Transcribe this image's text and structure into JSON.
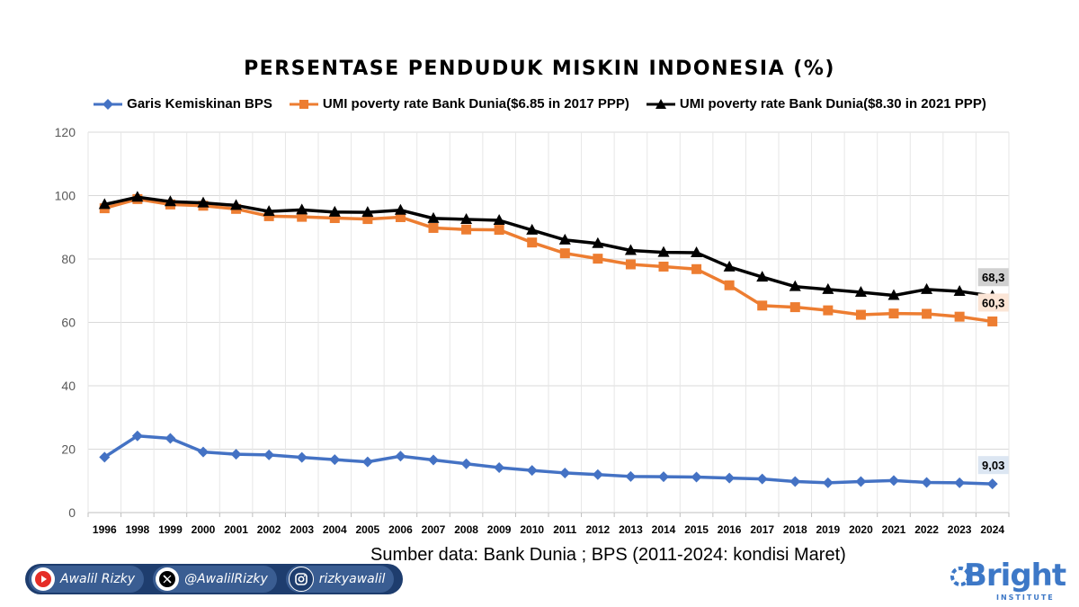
{
  "chart_data": {
    "type": "line",
    "title": "PERSENTASE PENDUDUK MISKIN INDONESIA (%)",
    "categories": [
      "1996",
      "1998",
      "1999",
      "2000",
      "2001",
      "2002",
      "2003",
      "2004",
      "2005",
      "2006",
      "2007",
      "2008",
      "2009",
      "2010",
      "2011",
      "2012",
      "2013",
      "2014",
      "2015",
      "2016",
      "2017",
      "2018",
      "2019",
      "2020",
      "2021",
      "2022",
      "2023",
      "2024"
    ],
    "ylim": [
      0,
      120
    ],
    "yticks": [
      "0",
      "20",
      "40",
      "60",
      "80",
      "100",
      "120"
    ],
    "grid": "horizontal",
    "legend_position": "top",
    "series": [
      {
        "name": "Garis Kemiskinan BPS",
        "color": "#4472c4",
        "marker": "diamond",
        "values": [
          17.5,
          24.2,
          23.4,
          19.1,
          18.4,
          18.2,
          17.4,
          16.7,
          16.0,
          17.8,
          16.6,
          15.4,
          14.2,
          13.3,
          12.5,
          12.0,
          11.4,
          11.3,
          11.2,
          10.9,
          10.6,
          9.8,
          9.4,
          9.8,
          10.1,
          9.5,
          9.4,
          9.03
        ],
        "end_label": "9,03",
        "end_label_bg": "#dce6f2"
      },
      {
        "name": "UMI poverty rate Bank Dunia($6.85 in 2017 PPP)",
        "color": "#ed7d31",
        "marker": "square",
        "values": [
          96.0,
          98.9,
          97.2,
          96.8,
          95.8,
          93.5,
          93.3,
          92.9,
          92.6,
          93.2,
          89.8,
          89.3,
          89.2,
          85.2,
          81.8,
          80.1,
          78.3,
          77.6,
          76.8,
          71.7,
          65.3,
          64.8,
          63.8,
          62.4,
          62.8,
          62.7,
          61.8,
          60.3
        ],
        "end_label": "60,3",
        "end_label_bg": "#fbe5d6"
      },
      {
        "name": "UMI poverty rate Bank Dunia($8.30 in 2021 PPP)",
        "color": "#000000",
        "marker": "triangle",
        "values": [
          97.2,
          99.5,
          98.1,
          97.7,
          96.9,
          95.0,
          95.5,
          94.8,
          94.7,
          95.4,
          92.8,
          92.5,
          92.2,
          89.1,
          86.0,
          84.9,
          82.7,
          82.1,
          82.0,
          77.5,
          74.3,
          71.3,
          70.4,
          69.5,
          68.5,
          70.4,
          69.8,
          68.3
        ],
        "end_label": "68,3",
        "end_label_bg": "#d0d0d0"
      }
    ]
  },
  "source_note": "Sumber data: Bank Dunia ; BPS (2011-2024: kondisi Maret)",
  "footer": {
    "youtube": {
      "label": "Awalil Rizky",
      "icon": "youtube-icon",
      "color": "#e52d27"
    },
    "x": {
      "label": "@AwalilRizky",
      "icon": "x-icon"
    },
    "instagram": {
      "label": "rizkyawalil",
      "icon": "instagram-icon"
    }
  },
  "logo": {
    "word": "Bright",
    "sub": "INSTITUTE",
    "color": "#3d78c7"
  }
}
